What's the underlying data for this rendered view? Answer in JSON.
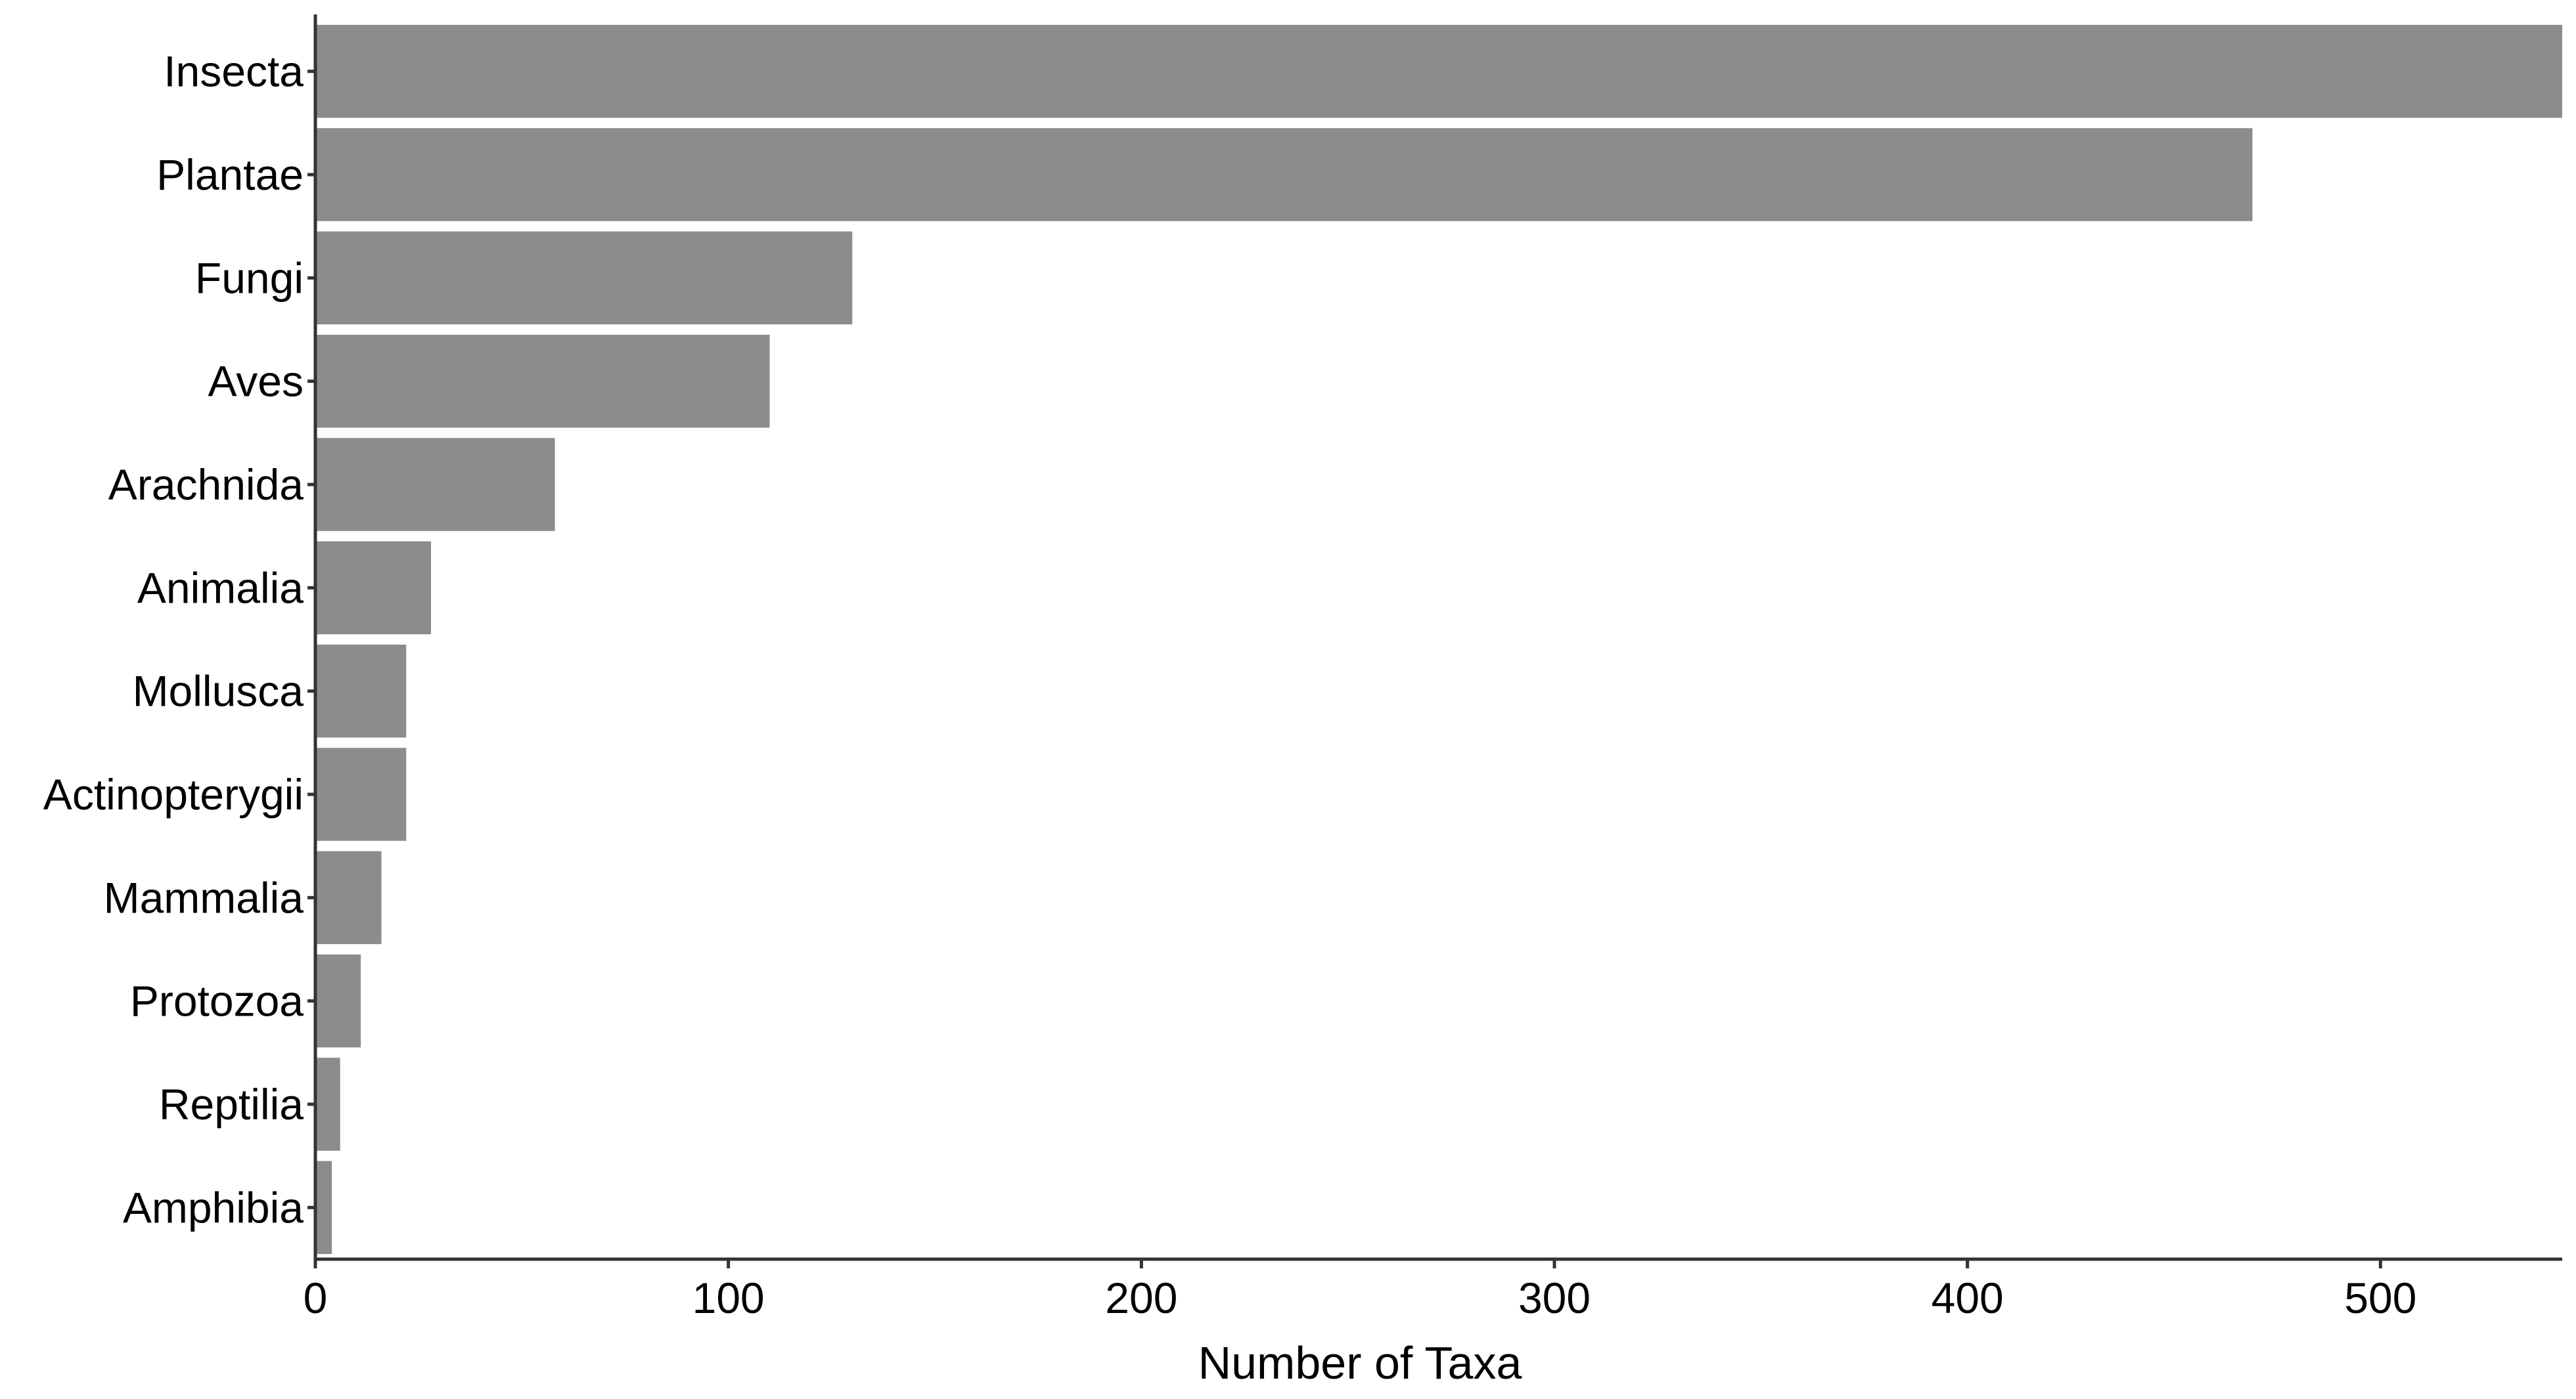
{
  "chart_data": {
    "type": "bar",
    "orientation": "horizontal",
    "categories": [
      "Insecta",
      "Plantae",
      "Fungi",
      "Aves",
      "Arachnida",
      "Animalia",
      "Mollusca",
      "Actinopterygii",
      "Mammalia",
      "Protozoa",
      "Reptilia",
      "Amphibia"
    ],
    "values": [
      544,
      469,
      130,
      110,
      58,
      28,
      22,
      22,
      16,
      11,
      6,
      4
    ],
    "title": "",
    "xlabel": "Number of Taxa",
    "ylabel": "",
    "xlim": [
      0,
      544
    ],
    "xticks": [
      0,
      100,
      200,
      300,
      400,
      500
    ],
    "grid": false,
    "bar_color": "#8c8c8c",
    "axis_color": "#333333"
  }
}
